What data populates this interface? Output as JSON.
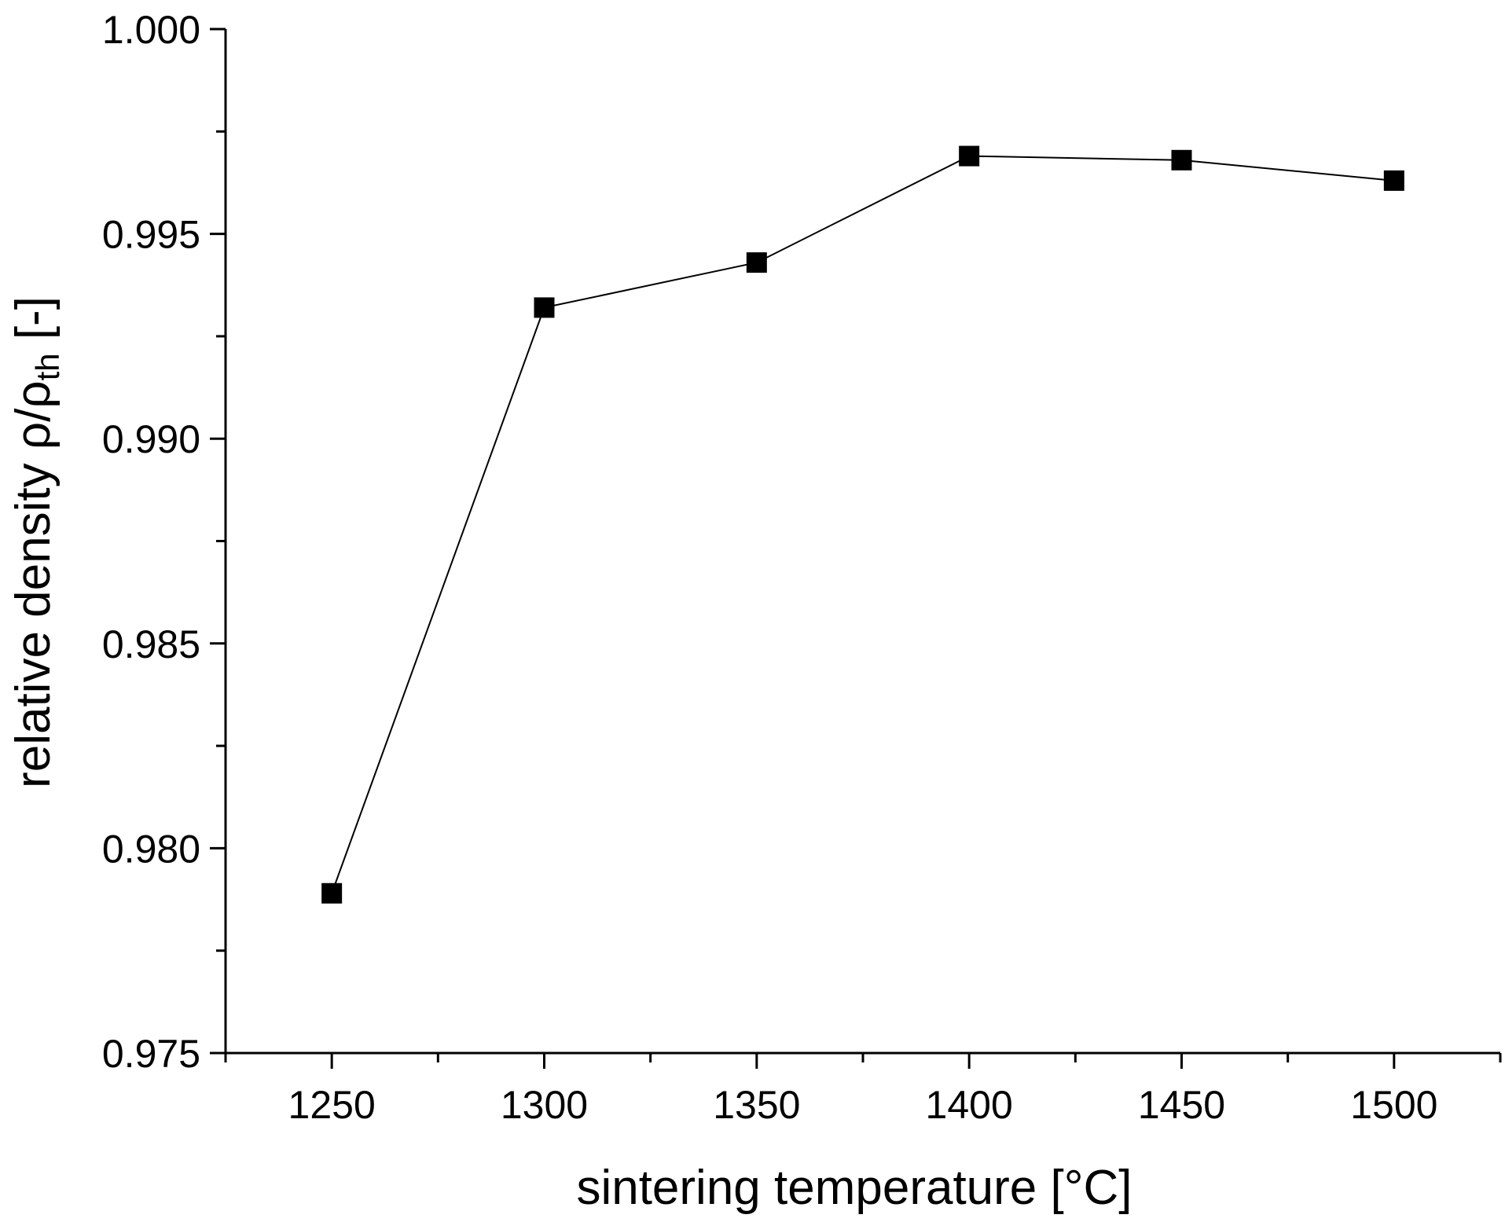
{
  "chart_data": {
    "type": "line",
    "title": "",
    "xlabel": "sintering temperature [°C]",
    "ylabel": {
      "prefix": "relative density ρ/ρ",
      "subscript": "th",
      "suffix": " [-]"
    },
    "xlim": [
      1225,
      1525
    ],
    "ylim": [
      0.975,
      1.0
    ],
    "x_ticks": [
      1250,
      1300,
      1350,
      1400,
      1450,
      1500
    ],
    "x_tick_labels": [
      "1250",
      "1300",
      "1350",
      "1400",
      "1450",
      "1500"
    ],
    "y_ticks": [
      0.975,
      0.98,
      0.985,
      0.99,
      0.995,
      1.0
    ],
    "y_tick_labels": [
      "0.975",
      "0.980",
      "0.985",
      "0.990",
      "0.995",
      "1.000"
    ],
    "grid": false,
    "marker": "square",
    "series": [
      {
        "name": "relative density",
        "color": "#000000",
        "x": [
          1250,
          1300,
          1350,
          1400,
          1450,
          1500
        ],
        "y": [
          0.9789,
          0.9932,
          0.9943,
          0.9969,
          0.9968,
          0.9963
        ]
      }
    ]
  }
}
